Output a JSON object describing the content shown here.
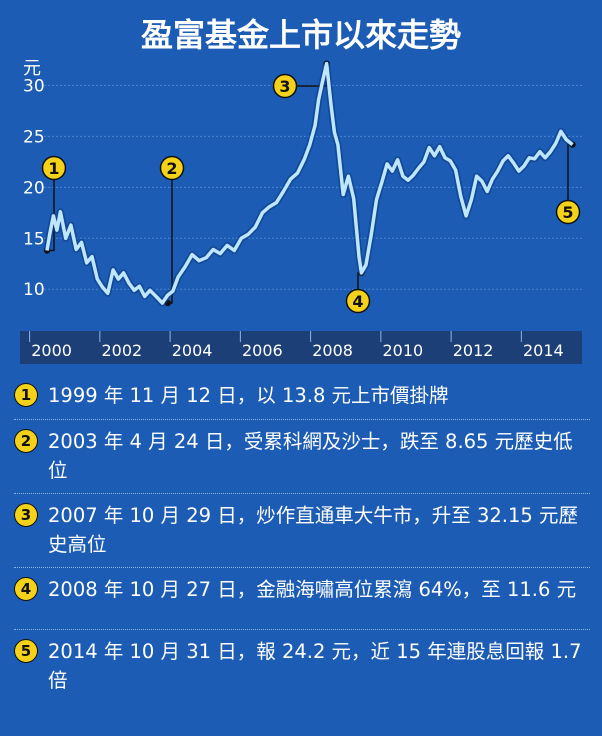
{
  "chart_data": {
    "type": "line",
    "title": "盈富基金上市以來走勢",
    "ylabel": "元",
    "yticks": [
      "30",
      "25",
      "20",
      "15",
      "10"
    ],
    "ytick_values": [
      30,
      25,
      20,
      15,
      10
    ],
    "xticks": [
      "2000",
      "2002",
      "2004",
      "2006",
      "2008",
      "2010",
      "2012",
      "2014"
    ],
    "xtick_values": [
      2000,
      2002,
      2004,
      2006,
      2008,
      2010,
      2012,
      2014
    ],
    "xlim": [
      1999.1,
      2015.1
    ],
    "ylim": [
      6,
      32.5
    ],
    "grid": true,
    "series": [
      {
        "x": [
          1999.87,
          1999.95,
          2000.05,
          2000.15,
          2000.25,
          2000.4,
          2000.55,
          2000.7,
          2000.85,
          2001.0,
          2001.15,
          2001.3,
          2001.45,
          2001.6,
          2001.75,
          2001.9,
          2002.05,
          2002.2,
          2002.35,
          2002.5,
          2002.65,
          2002.8,
          2003.0,
          2003.15,
          2003.3,
          2003.45,
          2003.6,
          2003.8,
          2004.0,
          2004.2,
          2004.4,
          2004.6,
          2004.8,
          2005.0,
          2005.2,
          2005.4,
          2005.6,
          2005.8,
          2006.0,
          2006.2,
          2006.4,
          2006.6,
          2006.8,
          2007.0,
          2007.2,
          2007.35,
          2007.5,
          2007.6,
          2007.7,
          2007.83,
          2007.95,
          2008.05,
          2008.15,
          2008.3,
          2008.45,
          2008.6,
          2008.75,
          2008.82,
          2008.95,
          2009.1,
          2009.25,
          2009.4,
          2009.55,
          2009.7,
          2009.85,
          2010.0,
          2010.15,
          2010.3,
          2010.45,
          2010.6,
          2010.75,
          2010.9,
          2011.05,
          2011.2,
          2011.35,
          2011.5,
          2011.65,
          2011.8,
          2011.95,
          2012.1,
          2012.25,
          2012.4,
          2012.55,
          2012.7,
          2012.85,
          2013.0,
          2013.15,
          2013.3,
          2013.45,
          2013.6,
          2013.75,
          2013.9,
          2014.05,
          2014.2,
          2014.35,
          2014.5,
          2014.65,
          2014.83
        ],
        "values": [
          13.8,
          15.5,
          17.2,
          15.8,
          17.6,
          15.0,
          16.3,
          13.9,
          14.6,
          12.6,
          13.2,
          11.0,
          10.2,
          9.6,
          11.9,
          11.0,
          11.6,
          10.6,
          9.9,
          10.3,
          9.3,
          9.9,
          9.2,
          8.65,
          9.4,
          9.8,
          11.2,
          12.2,
          13.4,
          12.8,
          13.1,
          13.9,
          13.5,
          14.3,
          13.8,
          15.0,
          15.4,
          16.1,
          17.5,
          18.1,
          18.5,
          19.6,
          20.8,
          21.4,
          22.8,
          24.2,
          26.1,
          28.6,
          30.2,
          32.15,
          28.2,
          25.4,
          24.2,
          19.3,
          21.1,
          18.9,
          13.2,
          11.6,
          12.4,
          15.4,
          18.8,
          20.5,
          22.3,
          21.6,
          22.7,
          21.1,
          20.7,
          21.2,
          21.9,
          22.5,
          23.9,
          23.1,
          24.0,
          22.9,
          22.6,
          21.7,
          19.1,
          17.2,
          18.8,
          21.1,
          20.6,
          19.6,
          20.8,
          21.6,
          22.6,
          23.1,
          22.4,
          21.6,
          22.1,
          22.9,
          22.8,
          23.5,
          22.9,
          23.5,
          24.3,
          25.5,
          24.7,
          24.2
        ]
      }
    ],
    "callouts": [
      {
        "num": "1",
        "x": 1999.87,
        "y": 13.8
      },
      {
        "num": "2",
        "x": 2003.31,
        "y": 8.65
      },
      {
        "num": "3",
        "x": 2007.83,
        "y": 32.15
      },
      {
        "num": "4",
        "x": 2008.82,
        "y": 11.6
      },
      {
        "num": "5",
        "x": 2014.83,
        "y": 24.2
      }
    ]
  },
  "notes": [
    {
      "num": "1",
      "text": "1999 年 11 月 12 日，以 13.8 元上市價掛牌"
    },
    {
      "num": "2",
      "text": "2003 年 4 月 24 日，受累科網及沙士，跌至 8.65 元歷史低位"
    },
    {
      "num": "3",
      "text": "2007 年 10 月 29 日，炒作直通車大牛市，升至 32.15 元歷史高位"
    },
    {
      "num": "4",
      "text": "2008 年 10 月 27 日，金融海嘯高位累瀉 64%，至 11.6 元"
    },
    {
      "num": "5",
      "text": "2014 年 10 月 31 日，報 24.2 元，近 15 年連股息回報 1.7 倍"
    }
  ],
  "colors": {
    "background": "#1c5cb4",
    "line": "#bfe6ff",
    "badge": "#f4d21a",
    "axis_band": "#1c3f78"
  }
}
